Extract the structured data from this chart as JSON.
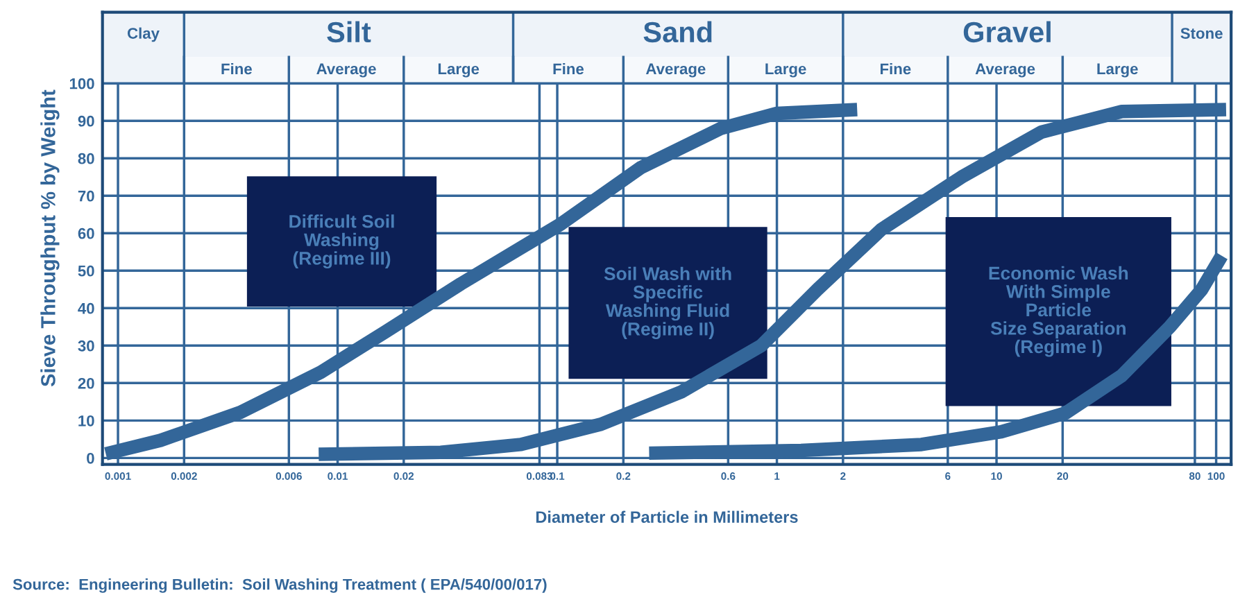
{
  "chart_data": {
    "type": "line",
    "xlabel": "Diameter of Particle in Millimeters",
    "ylabel": "Sieve Throughput % by Weight",
    "log": "x",
    "xlim": [
      0.00085,
      117
    ],
    "ylim": [
      -1.7,
      119
    ],
    "xticks": [
      0.001,
      0.002,
      0.006,
      0.01,
      0.02,
      0.083,
      0.1,
      0.2,
      0.6,
      1,
      2,
      6,
      10,
      20,
      80,
      100
    ],
    "yticks": [
      0,
      10,
      20,
      30,
      40,
      50,
      60,
      70,
      80,
      90,
      100
    ],
    "grid": true,
    "marker": "none",
    "line_style": "solid",
    "series": [
      {
        "color": "#336699",
        "x": [
          0.00088,
          0.00156,
          0.00361,
          0.00838,
          0.0164,
          0.0364,
          0.104,
          0.24,
          0.557,
          1.0,
          2.32
        ],
        "values": [
          1.1,
          4.7,
          12.2,
          22.9,
          33.6,
          46.5,
          62.5,
          77.5,
          88,
          92,
          93
        ]
      },
      {
        "color": "#336699",
        "x": [
          0.0082,
          0.0295,
          0.0683,
          0.158,
          0.366,
          0.849,
          1.53,
          2.99,
          6.93,
          16.0,
          37.2,
          111
        ],
        "values": [
          1,
          1.5,
          3.6,
          9,
          17.6,
          30,
          45,
          61,
          75,
          87,
          92.5,
          93
        ]
      },
      {
        "color": "#336699",
        "x": [
          0.262,
          1.29,
          4.55,
          10.5,
          20.6,
          37.2,
          61.5,
          86,
          106
        ],
        "values": [
          1.3,
          2,
          3.6,
          7,
          12,
          22,
          35,
          45,
          54
        ]
      }
    ],
    "bands": [
      {
        "axis": "x",
        "from": 0.00085,
        "to": 0.002,
        "label": "Clay",
        "color": "#eef3f9"
      },
      {
        "axis": "x",
        "from": 0.002,
        "to": 0.063,
        "label": "Silt",
        "color": "#eef3f9"
      },
      {
        "axis": "x",
        "from": 0.063,
        "to": 2,
        "label": "Sand",
        "color": "#eef3f9"
      },
      {
        "axis": "x",
        "from": 2,
        "to": 63,
        "label": "Gravel",
        "color": "#eef3f9"
      },
      {
        "axis": "x",
        "from": 63,
        "to": 117,
        "label": "Stone",
        "color": "#eef3f9"
      },
      {
        "axis": "x",
        "from": 0.002,
        "to": 0.006,
        "label": "Fine",
        "color": "#f6f9fc"
      },
      {
        "axis": "x",
        "from": 0.006,
        "to": 0.02,
        "label": "Average",
        "color": "#f6f9fc"
      },
      {
        "axis": "x",
        "from": 0.02,
        "to": 0.063,
        "label": "Large",
        "color": "#f6f9fc"
      },
      {
        "axis": "x",
        "from": 0.063,
        "to": 0.2,
        "label": "Fine",
        "color": "#f6f9fc"
      },
      {
        "axis": "x",
        "from": 0.2,
        "to": 0.6,
        "label": "Average",
        "color": "#f6f9fc"
      },
      {
        "axis": "x",
        "from": 0.6,
        "to": 2,
        "label": "Large",
        "color": "#f6f9fc"
      },
      {
        "axis": "x",
        "from": 2,
        "to": 6,
        "label": "Fine",
        "color": "#f6f9fc"
      },
      {
        "axis": "x",
        "from": 6,
        "to": 20,
        "label": "Average",
        "color": "#f6f9fc"
      },
      {
        "axis": "x",
        "from": 20,
        "to": 63,
        "label": "Large",
        "color": "#f6f9fc"
      }
    ],
    "annotations": [
      "Difficult Soil\nWashing\n(Regime III)",
      "Soil Wash with\nSpecific\nWashing Fluid\n(Regime II)",
      "Economic Wash\nWith Simple\nParticle\nSize Separation\n(Regime I)",
      "Source:  Engineering Bulletin:  Soil Washing Treatment ( EPA/540/00/017)"
    ]
  }
}
